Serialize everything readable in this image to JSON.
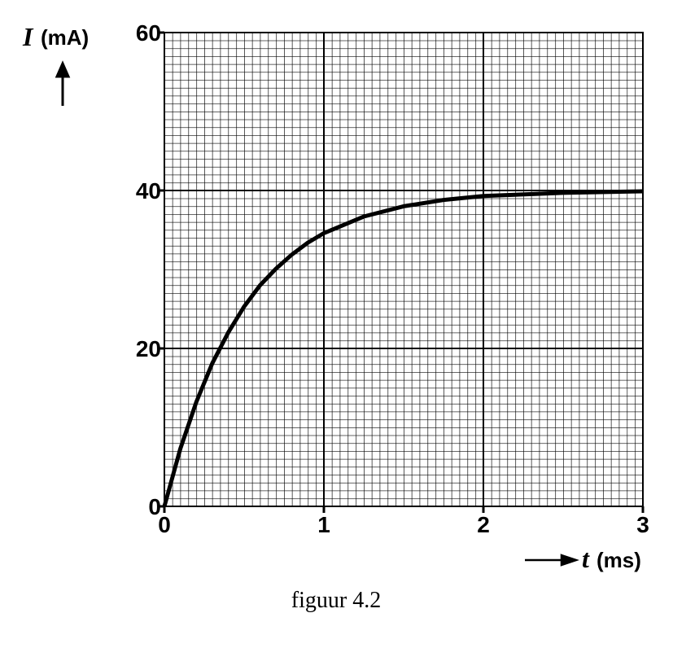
{
  "chart_data": {
    "type": "line",
    "ylabel": {
      "symbol": "I",
      "unit": "(mA)"
    },
    "xlabel": {
      "symbol": "t",
      "unit": "(ms)"
    },
    "caption": "figuur 4.2",
    "x": [
      0,
      0.1,
      0.2,
      0.3,
      0.4,
      0.5,
      0.6,
      0.7,
      0.8,
      0.9,
      1.0,
      1.25,
      1.5,
      1.75,
      2.0,
      2.5,
      3.0
    ],
    "values": [
      0,
      7.3,
      13.2,
      18.1,
      22.0,
      25.3,
      28.0,
      30.1,
      31.9,
      33.4,
      34.6,
      36.7,
      38.0,
      38.8,
      39.3,
      39.7,
      39.9
    ],
    "color": "#000000",
    "xlim": [
      0,
      3
    ],
    "xticks": [
      0,
      1,
      2,
      3
    ],
    "ylim": [
      0,
      60
    ],
    "yticks": [
      0,
      20,
      40,
      60
    ],
    "grid": true
  }
}
